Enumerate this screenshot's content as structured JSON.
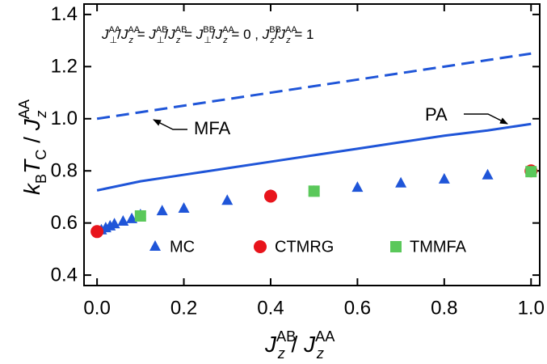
{
  "chart_data": {
    "type": "line",
    "annotation": [
      {
        "t": "J",
        "sub": "⊥",
        "sup": "AA"
      },
      {
        "t": "/"
      },
      {
        "t": "J",
        "sub": "z",
        "sup": "AA"
      },
      {
        "t": " = "
      },
      {
        "t": "J",
        "sub": "⊥",
        "sup": "AB"
      },
      {
        "t": "/"
      },
      {
        "t": "J",
        "sub": "z",
        "sup": "AB"
      },
      {
        "t": " = "
      },
      {
        "t": "J",
        "sub": "⊥",
        "sup": "BB"
      },
      {
        "t": "/"
      },
      {
        "t": "J",
        "sub": "z",
        "sup": "AA"
      },
      {
        "t": " = 0 ,  "
      },
      {
        "t": "J",
        "sub": "z",
        "sup": "BB"
      },
      {
        "t": "/"
      },
      {
        "t": "J",
        "sub": "z",
        "sup": "AA"
      },
      {
        "t": " = 1"
      }
    ],
    "xlabel": [
      {
        "t": "J",
        "sub": "z",
        "sup": "AB"
      },
      {
        "t": " / "
      },
      {
        "t": "J",
        "sub": "z",
        "sup": "AA"
      }
    ],
    "ylabel": [
      {
        "t": "k",
        "sub": "B"
      },
      {
        "t": "T",
        "sub": "C"
      },
      {
        "t": " / "
      },
      {
        "t": "J",
        "sub": "z",
        "sup": "AA"
      }
    ],
    "xlim": [
      -0.03,
      1.02
    ],
    "ylim": [
      0.36,
      1.44
    ],
    "xticks": [
      {
        "value": 0,
        "label": "0.0"
      },
      0.2,
      0.4,
      0.6,
      0.8,
      {
        "value": 1,
        "label": "1.0"
      }
    ],
    "yticks": [
      0.4,
      0.6,
      0.8,
      {
        "value": 1,
        "label": "1.0"
      },
      1.2,
      1.4
    ],
    "legend": "lower center",
    "series": [
      {
        "name": "MFA",
        "type": "line",
        "dash": "dashed",
        "color": "#1f55d8",
        "x": [
          0,
          0.1,
          0.2,
          0.3,
          0.4,
          0.5,
          0.6,
          0.7,
          0.8,
          0.9,
          1.0
        ],
        "values": [
          1.0,
          1.025,
          1.05,
          1.075,
          1.1,
          1.125,
          1.15,
          1.175,
          1.2,
          1.225,
          1.25
        ]
      },
      {
        "name": "PA",
        "type": "line",
        "dash": "solid",
        "color": "#1f55d8",
        "x": [
          0,
          0.1,
          0.2,
          0.3,
          0.4,
          0.5,
          0.6,
          0.7,
          0.8,
          0.9,
          1.0
        ],
        "values": [
          0.725,
          0.76,
          0.785,
          0.81,
          0.835,
          0.86,
          0.885,
          0.91,
          0.935,
          0.955,
          0.98
        ]
      },
      {
        "name": "MC",
        "type": "scatter",
        "marker": "triangle",
        "color": "#1f55d8",
        "x": [
          0.01,
          0.02,
          0.03,
          0.04,
          0.06,
          0.08,
          0.1,
          0.15,
          0.2,
          0.3,
          0.4,
          0.5,
          0.6,
          0.7,
          0.8,
          0.9,
          1.0
        ],
        "values": [
          0.572,
          0.58,
          0.587,
          0.595,
          0.605,
          0.615,
          0.63,
          0.645,
          0.655,
          0.685,
          0.705,
          0.72,
          0.735,
          0.752,
          0.767,
          0.783,
          0.8
        ]
      },
      {
        "name": "CTMRG",
        "type": "scatter",
        "marker": "circle",
        "color": "#e8141b",
        "x": [
          0,
          0.4,
          1.0
        ],
        "values": [
          0.567,
          0.703,
          0.8
        ]
      },
      {
        "name": "TMMFA",
        "type": "scatter",
        "marker": "square",
        "color": "#5ac85a",
        "x": [
          0.1,
          0.5,
          1.0
        ],
        "values": [
          0.627,
          0.722,
          0.797
        ]
      }
    ]
  }
}
